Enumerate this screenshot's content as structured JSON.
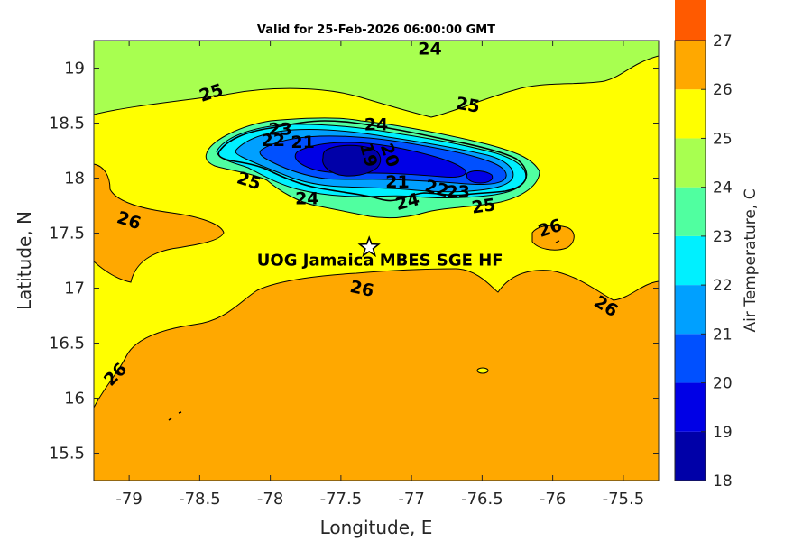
{
  "chart_data": {
    "type": "heatmap",
    "title": "Valid for 25-Feb-2026 06:00:00 GMT",
    "xlabel": "Longitude, E",
    "ylabel": "Latitude, N",
    "xlim": [
      -79.25,
      -75.25
    ],
    "ylim": [
      15.25,
      19.25
    ],
    "x_ticks": [
      "-79",
      "-78.5",
      "-78",
      "-77.5",
      "-77",
      "-76.5",
      "-76",
      "-75.5"
    ],
    "x_tick_values": [
      -79,
      -78.5,
      -78,
      -77.5,
      -77,
      -76.5,
      -76,
      -75.5
    ],
    "y_ticks": [
      "15.5",
      "16",
      "16.5",
      "17",
      "17.5",
      "18",
      "18.5",
      "19"
    ],
    "y_tick_values": [
      15.5,
      16,
      16.5,
      17,
      17.5,
      18,
      18.5,
      19
    ],
    "colorbar": {
      "label": "Air Temperature, C",
      "range": [
        18,
        27
      ],
      "ticks": [
        "18",
        "19",
        "20",
        "21",
        "22",
        "23",
        "24",
        "25",
        "26",
        "27"
      ],
      "tick_values": [
        18,
        19,
        20,
        21,
        22,
        23,
        24,
        25,
        26,
        27
      ],
      "level_colors": [
        "#0000a8",
        "#0000e6",
        "#0050ff",
        "#00a0ff",
        "#00f0ff",
        "#50ffa0",
        "#a8ff50",
        "#ffff00",
        "#ffa800",
        "#ff5a00"
      ]
    },
    "contour_labels": [
      {
        "text": "24",
        "lon": -76.87,
        "lat": 19.18,
        "angle": 0
      },
      {
        "text": "25",
        "lon": -78.42,
        "lat": 18.78,
        "angle": -18
      },
      {
        "text": "25",
        "lon": -76.6,
        "lat": 18.67,
        "angle": 10
      },
      {
        "text": "24",
        "lon": -77.25,
        "lat": 18.49,
        "angle": 0
      },
      {
        "text": "23",
        "lon": -77.93,
        "lat": 18.45,
        "angle": 0
      },
      {
        "text": "22",
        "lon": -77.98,
        "lat": 18.35,
        "angle": 0
      },
      {
        "text": "21",
        "lon": -77.77,
        "lat": 18.33,
        "angle": 0
      },
      {
        "text": "19",
        "lon": -77.3,
        "lat": 18.21,
        "angle": 75
      },
      {
        "text": "20",
        "lon": -77.15,
        "lat": 18.21,
        "angle": 70
      },
      {
        "text": "25",
        "lon": -78.15,
        "lat": 17.98,
        "angle": 18
      },
      {
        "text": "21",
        "lon": -77.1,
        "lat": 17.97,
        "angle": 0
      },
      {
        "text": "22",
        "lon": -76.82,
        "lat": 17.91,
        "angle": 15
      },
      {
        "text": "23",
        "lon": -76.67,
        "lat": 17.88,
        "angle": 0
      },
      {
        "text": "24",
        "lon": -77.74,
        "lat": 17.82,
        "angle": 0
      },
      {
        "text": "24",
        "lon": -77.03,
        "lat": 17.79,
        "angle": -15
      },
      {
        "text": "25",
        "lon": -76.49,
        "lat": 17.75,
        "angle": -8
      },
      {
        "text": "26",
        "lon": -79.0,
        "lat": 17.62,
        "angle": 18
      },
      {
        "text": "26",
        "lon": -76.02,
        "lat": 17.55,
        "angle": -18
      },
      {
        "text": "26",
        "lon": -77.35,
        "lat": 17.0,
        "angle": 12
      },
      {
        "text": "26",
        "lon": -75.62,
        "lat": 16.84,
        "angle": 32
      },
      {
        "text": "26",
        "lon": -79.1,
        "lat": 16.22,
        "angle": -45
      }
    ],
    "station": {
      "name": "UOG Jamaica MBES SGE HF",
      "lon": -77.3,
      "lat": 17.37
    }
  }
}
